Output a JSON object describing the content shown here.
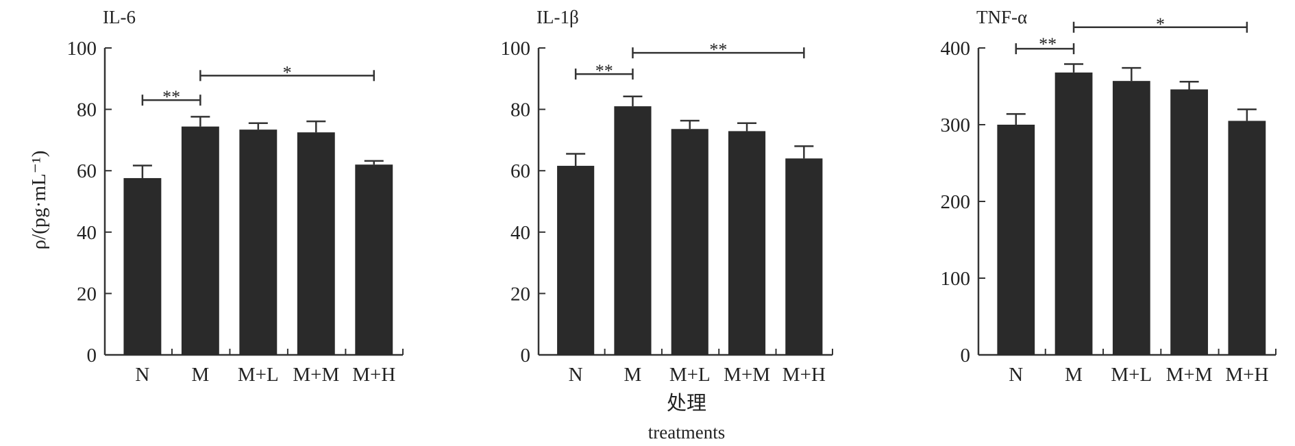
{
  "chart_data": [
    {
      "type": "bar",
      "title": "IL-6",
      "ylabel": "ρ/(pg·mL⁻¹)",
      "categories": [
        "N",
        "M",
        "M+L",
        "M+M",
        "M+H"
      ],
      "values": [
        57.6,
        74.4,
        73.4,
        72.5,
        62.0
      ],
      "errors": [
        4.1,
        3.2,
        2.1,
        3.6,
        1.2
      ],
      "ylim": [
        0,
        100
      ],
      "yticks": [
        0,
        20,
        40,
        60,
        80,
        100
      ],
      "significance": [
        {
          "from": "N",
          "to": "M",
          "level": 83,
          "label": "**"
        },
        {
          "from": "M",
          "to": "M+H",
          "level": 91,
          "label": "*"
        }
      ]
    },
    {
      "type": "bar",
      "title": "IL-1β",
      "categories": [
        "N",
        "M",
        "M+L",
        "M+M",
        "M+H"
      ],
      "values": [
        61.6,
        81.0,
        73.6,
        72.9,
        64.0
      ],
      "errors": [
        3.9,
        3.2,
        2.7,
        2.6,
        4.0
      ],
      "ylim": [
        0,
        100
      ],
      "yticks": [
        0,
        20,
        40,
        60,
        80,
        100
      ],
      "xlabel": "处理",
      "xlabel_en": "treatments",
      "significance": [
        {
          "from": "N",
          "to": "M",
          "level": 91.5,
          "label": "**"
        },
        {
          "from": "M",
          "to": "M+H",
          "level": 98.4,
          "label": "**"
        }
      ]
    },
    {
      "type": "bar",
      "title": "TNF-α",
      "categories": [
        "N",
        "M",
        "M+L",
        "M+M",
        "M+H"
      ],
      "values": [
        300,
        368,
        357,
        346,
        305
      ],
      "errors": [
        14,
        11,
        17,
        10,
        15
      ],
      "ylim": [
        0,
        400
      ],
      "yticks": [
        0,
        100,
        200,
        300,
        400
      ],
      "significance": [
        {
          "from": "N",
          "to": "M",
          "level": 399,
          "label": "**"
        },
        {
          "from": "M",
          "to": "M+H",
          "level": 427,
          "label": "*"
        }
      ]
    }
  ],
  "colors": {
    "bar": "#2a2a2a",
    "axis": "#333333"
  }
}
